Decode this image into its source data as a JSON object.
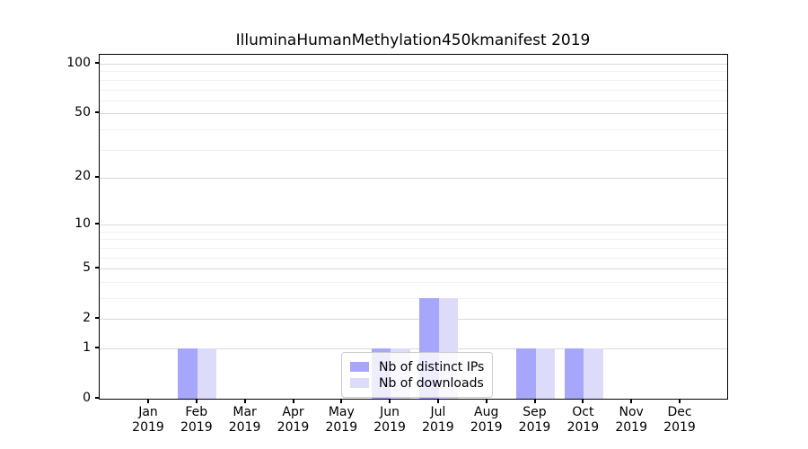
{
  "figure": {
    "background": "#ffffff"
  },
  "chart_data": {
    "type": "bar",
    "title": "IlluminaHumanMethylation450kmanifest 2019",
    "categories": [
      "Jan",
      "Feb",
      "Mar",
      "Apr",
      "May",
      "Jun",
      "Jul",
      "Aug",
      "Sep",
      "Oct",
      "Nov",
      "Dec"
    ],
    "year_label": "2019",
    "series": [
      {
        "name": "Nb of distinct IPs",
        "color": "#a6a6fa",
        "values": [
          0,
          1,
          0,
          0,
          0,
          1,
          3,
          0,
          1,
          1,
          0,
          0
        ]
      },
      {
        "name": "Nb of downloads",
        "color": "#dcdcfa",
        "values": [
          0,
          1,
          0,
          0,
          0,
          1,
          3,
          0,
          1,
          1,
          0,
          0
        ]
      }
    ],
    "yscale": "log1p",
    "ylim": [
      0,
      114
    ],
    "yticks": [
      0,
      1,
      2,
      5,
      10,
      20,
      50,
      100
    ],
    "yticks_minor": [
      3,
      4,
      6,
      7,
      8,
      9,
      30,
      40,
      60,
      70,
      80,
      90
    ],
    "grid": true,
    "legend_position": "lower-center",
    "colors": {
      "major_grid": "#d9d9d9",
      "minor_grid": "#f1f1f1",
      "spine": "#000000"
    }
  }
}
